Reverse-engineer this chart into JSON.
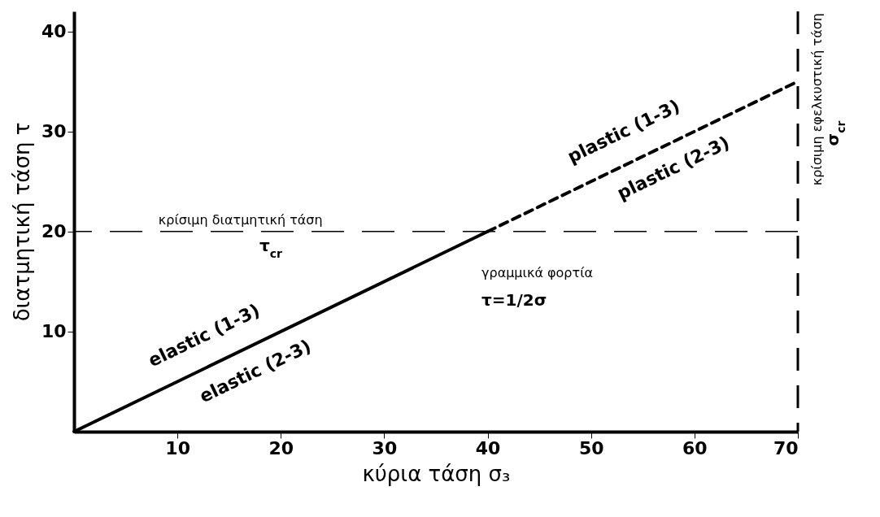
{
  "chart_data": {
    "type": "line",
    "xlabel": "κύρια τάση σ₃",
    "ylabel": "διατμητική τάση τ",
    "xlim": [
      0,
      70
    ],
    "xticks": [
      10,
      20,
      30,
      40,
      50,
      60,
      70
    ],
    "ylim": [
      0,
      42
    ],
    "yticks": [
      10,
      20,
      30,
      40
    ],
    "grid": false,
    "legend": false,
    "marker": "none",
    "series": [
      {
        "color": "#000000",
        "line_style": "solid",
        "x": [
          0,
          40
        ],
        "values": [
          0,
          20
        ]
      },
      {
        "color": "#000000",
        "line_style": "dashed",
        "x": [
          40,
          70
        ],
        "values": [
          20,
          35
        ]
      }
    ],
    "ref_lines": [
      {
        "axis": "y",
        "value": 20,
        "label": "κρίσιμη διατμητική τάση",
        "color": "#000000",
        "line_style": "dashed"
      },
      {
        "axis": "x",
        "value": 70,
        "label": "κρίσιμη εφελκυστική τάση",
        "color": "#000000",
        "line_style": "dashed"
      }
    ],
    "annotations": [
      "elastic (1-3)",
      "elastic (2-3)",
      "plastic (1-3)",
      "plastic (2-3)",
      "τ$_{cr}$",
      "σ$_{cr}$",
      "γραμμικά φορτία",
      "τ=1/2σ"
    ]
  }
}
